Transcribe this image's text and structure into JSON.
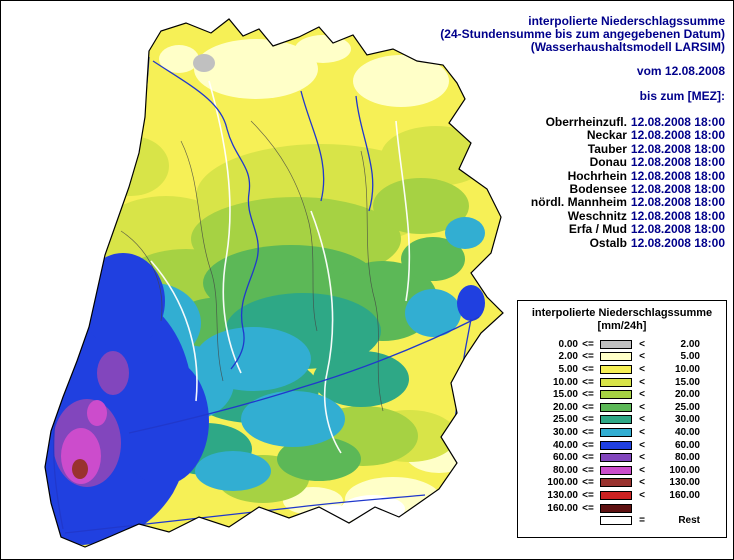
{
  "header": {
    "title_line1": "interpolierte Niederschlagssumme",
    "title_line2": "(24-Stundensumme bis zum angegebenen Datum)",
    "title_line3": "(Wasserhaushaltsmodell LARSIM)",
    "date_line": "vom 12.08.2008",
    "until_label": "bis zum [MEZ]:"
  },
  "regions": [
    {
      "name": "Oberrheinzufl.",
      "datetime": "12.08.2008 18:00"
    },
    {
      "name": "Neckar",
      "datetime": "12.08.2008 18:00"
    },
    {
      "name": "Tauber",
      "datetime": "12.08.2008 18:00"
    },
    {
      "name": "Donau",
      "datetime": "12.08.2008 18:00"
    },
    {
      "name": "Hochrhein",
      "datetime": "12.08.2008 18:00"
    },
    {
      "name": "Bodensee",
      "datetime": "12.08.2008 18:00"
    },
    {
      "name": "nördl. Mannheim",
      "datetime": "12.08.2008 18:00"
    },
    {
      "name": "Weschnitz",
      "datetime": "12.08.2008 18:00"
    },
    {
      "name": "Erfa / Mud",
      "datetime": "12.08.2008 18:00"
    },
    {
      "name": "Ostalb",
      "datetime": "12.08.2008 18:00"
    }
  ],
  "legend": {
    "title_line1": "interpolierte Niederschlagssumme",
    "title_line2": "[mm/24h]",
    "rows": [
      {
        "from": "0.00",
        "op_left": "<=",
        "color": "#c0c0c0",
        "op_right": "<",
        "to": "2.00"
      },
      {
        "from": "2.00",
        "op_left": "<=",
        "color": "#ffffc8",
        "op_right": "<",
        "to": "5.00"
      },
      {
        "from": "5.00",
        "op_left": "<=",
        "color": "#f6f056",
        "op_right": "<",
        "to": "10.00"
      },
      {
        "from": "10.00",
        "op_left": "<=",
        "color": "#d8e448",
        "op_right": "<",
        "to": "15.00"
      },
      {
        "from": "15.00",
        "op_left": "<=",
        "color": "#a6d243",
        "op_right": "<",
        "to": "20.00"
      },
      {
        "from": "20.00",
        "op_left": "<=",
        "color": "#5cb857",
        "op_right": "<",
        "to": "25.00"
      },
      {
        "from": "25.00",
        "op_left": "<=",
        "color": "#2ea886",
        "op_right": "<",
        "to": "30.00"
      },
      {
        "from": "30.00",
        "op_left": "<=",
        "color": "#32aed2",
        "op_right": "<",
        "to": "40.00"
      },
      {
        "from": "40.00",
        "op_left": "<=",
        "color": "#2040e0",
        "op_right": "<",
        "to": "60.00"
      },
      {
        "from": "60.00",
        "op_left": "<=",
        "color": "#8246bd",
        "op_right": "<",
        "to": "80.00"
      },
      {
        "from": "80.00",
        "op_left": "<=",
        "color": "#cc4ccc",
        "op_right": "<",
        "to": "100.00"
      },
      {
        "from": "100.00",
        "op_left": "<=",
        "color": "#99322e",
        "op_right": "<",
        "to": "130.00"
      },
      {
        "from": "130.00",
        "op_left": "<=",
        "color": "#cc2222",
        "op_right": "<",
        "to": "160.00"
      },
      {
        "from": "160.00",
        "op_left": "<=",
        "color": "#5e1111",
        "op_right": "",
        "to": ""
      },
      {
        "from": "",
        "op_left": "",
        "color": "#ffffff",
        "op_right": "=",
        "to": "Rest"
      }
    ]
  }
}
